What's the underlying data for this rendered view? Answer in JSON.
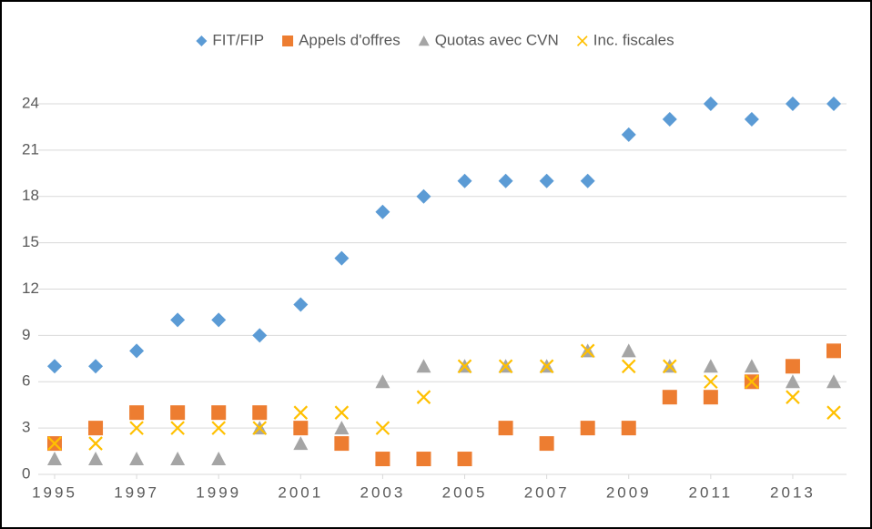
{
  "chart_data": {
    "type": "scatter",
    "x": [
      1995,
      1996,
      1997,
      1998,
      1999,
      2000,
      2001,
      2002,
      2003,
      2004,
      2005,
      2006,
      2007,
      2008,
      2009,
      2010,
      2011,
      2012,
      2013,
      2014
    ],
    "xlim": [
      1995,
      2014
    ],
    "xticks": [
      1995,
      1997,
      1999,
      2001,
      2003,
      2005,
      2007,
      2009,
      2011,
      2013
    ],
    "ylim": [
      0,
      24
    ],
    "yticks": [
      0,
      3,
      6,
      9,
      12,
      15,
      18,
      21,
      24
    ],
    "grid": true,
    "legend": "top",
    "series": [
      {
        "name": "FIT/FIP",
        "color": "#5b9bd5",
        "marker": "diamond",
        "values": [
          7,
          7,
          8,
          10,
          10,
          9,
          11,
          14,
          17,
          18,
          19,
          19,
          19,
          19,
          22,
          23,
          24,
          23,
          24,
          24
        ]
      },
      {
        "name": "Appels d'offres",
        "color": "#ed7d31",
        "marker": "square",
        "values": [
          2,
          3,
          4,
          4,
          4,
          4,
          3,
          2,
          1,
          1,
          1,
          3,
          2,
          3,
          3,
          5,
          5,
          6,
          7,
          8
        ]
      },
      {
        "name": "Quotas avec CVN",
        "color": "#a5a5a5",
        "marker": "triangle",
        "values": [
          1,
          1,
          1,
          1,
          1,
          3,
          2,
          3,
          6,
          7,
          7,
          7,
          7,
          8,
          8,
          7,
          7,
          7,
          6,
          6
        ]
      },
      {
        "name": "Inc. fiscales",
        "color": "#ffc000",
        "marker": "x",
        "values": [
          2,
          2,
          3,
          3,
          3,
          3,
          4,
          4,
          3,
          5,
          7,
          7,
          7,
          8,
          7,
          7,
          6,
          6,
          5,
          4
        ]
      }
    ]
  }
}
